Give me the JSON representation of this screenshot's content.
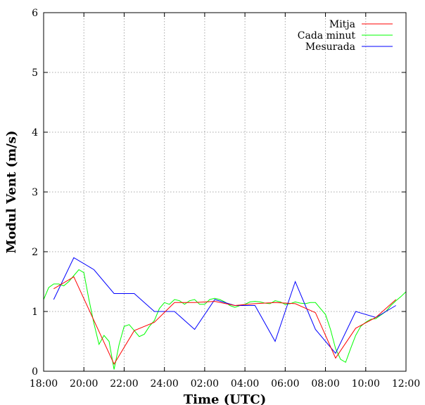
{
  "chart_data": {
    "type": "line",
    "title": "",
    "xlabel": "Time (UTC)",
    "ylabel": "Modul Vent (m/s)",
    "xlim": [
      18,
      36
    ],
    "ylim": [
      0,
      6
    ],
    "grid": true,
    "legend_position": "top-right",
    "x_ticks": [
      {
        "value": 18,
        "label": "18:00"
      },
      {
        "value": 20,
        "label": "20:00"
      },
      {
        "value": 22,
        "label": "22:00"
      },
      {
        "value": 24,
        "label": "24:00"
      },
      {
        "value": 26,
        "label": "02:00"
      },
      {
        "value": 28,
        "label": "04:00"
      },
      {
        "value": 30,
        "label": "06:00"
      },
      {
        "value": 32,
        "label": "08:00"
      },
      {
        "value": 34,
        "label": "10:00"
      },
      {
        "value": 36,
        "label": "12:00"
      }
    ],
    "y_ticks": [
      {
        "value": 0,
        "label": "0"
      },
      {
        "value": 1,
        "label": "1"
      },
      {
        "value": 2,
        "label": "2"
      },
      {
        "value": 3,
        "label": "3"
      },
      {
        "value": 4,
        "label": "4"
      },
      {
        "value": 5,
        "label": "5"
      },
      {
        "value": 6,
        "label": "6"
      }
    ],
    "series": [
      {
        "name": "Mitja",
        "color": "#ff0000",
        "x": [
          18.5,
          19.5,
          20.5,
          21.5,
          22.5,
          23.5,
          24.5,
          25.5,
          26.5,
          27.5,
          28.5,
          29.5,
          30.5,
          31.5,
          32.5,
          33.5,
          34.5,
          35.5
        ],
        "y": [
          1.38,
          1.58,
          0.85,
          0.12,
          0.68,
          0.82,
          1.15,
          1.15,
          1.17,
          1.1,
          1.13,
          1.15,
          1.13,
          0.98,
          0.22,
          0.72,
          0.9,
          1.2
        ]
      },
      {
        "name": "Cada minut",
        "color": "#00ff00",
        "x": [
          18.0,
          18.25,
          18.5,
          18.75,
          19.0,
          19.25,
          19.5,
          19.75,
          20.0,
          20.25,
          20.5,
          20.75,
          21.0,
          21.25,
          21.5,
          21.75,
          22.0,
          22.25,
          22.5,
          22.75,
          23.0,
          23.25,
          23.5,
          23.75,
          24.0,
          24.25,
          24.5,
          24.75,
          25.0,
          25.25,
          25.5,
          25.75,
          26.0,
          26.25,
          26.5,
          26.75,
          27.0,
          27.25,
          27.5,
          27.75,
          28.0,
          28.25,
          28.5,
          28.75,
          29.0,
          29.25,
          29.5,
          29.75,
          30.0,
          30.25,
          30.5,
          30.75,
          31.0,
          31.25,
          31.5,
          31.75,
          32.0,
          32.25,
          32.5,
          32.75,
          33.0,
          33.25,
          33.5,
          33.75,
          34.0,
          34.25,
          34.5,
          34.75,
          35.0,
          35.25,
          35.5,
          35.75,
          36.0
        ],
        "y": [
          1.2,
          1.4,
          1.46,
          1.46,
          1.43,
          1.5,
          1.6,
          1.7,
          1.65,
          1.2,
          0.8,
          0.45,
          0.6,
          0.5,
          0.03,
          0.45,
          0.75,
          0.78,
          0.68,
          0.58,
          0.62,
          0.75,
          0.85,
          1.05,
          1.15,
          1.12,
          1.2,
          1.18,
          1.12,
          1.18,
          1.2,
          1.12,
          1.12,
          1.2,
          1.22,
          1.2,
          1.16,
          1.1,
          1.07,
          1.1,
          1.12,
          1.16,
          1.17,
          1.16,
          1.14,
          1.13,
          1.18,
          1.16,
          1.12,
          1.13,
          1.16,
          1.14,
          1.13,
          1.15,
          1.15,
          1.05,
          0.95,
          0.7,
          0.38,
          0.2,
          0.15,
          0.38,
          0.6,
          0.75,
          0.82,
          0.87,
          0.88,
          0.94,
          1.0,
          1.1,
          1.18,
          1.25,
          1.33
        ]
      },
      {
        "name": "Mesurada",
        "color": "#0000ff",
        "x": [
          18.5,
          19.5,
          20.5,
          21.5,
          22.5,
          23.5,
          24.5,
          25.5,
          26.5,
          27.5,
          28.5,
          29.5,
          30.5,
          31.5,
          32.5,
          33.5,
          34.5,
          35.5
        ],
        "y": [
          1.2,
          1.9,
          1.7,
          1.3,
          1.3,
          1.0,
          1.0,
          0.7,
          1.2,
          1.1,
          1.1,
          0.5,
          1.5,
          0.7,
          0.3,
          1.0,
          0.9,
          1.1
        ]
      }
    ]
  }
}
